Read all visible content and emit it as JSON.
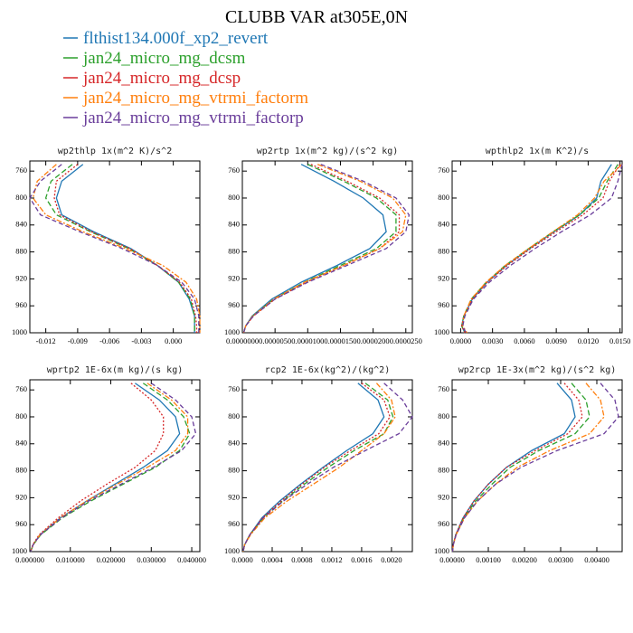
{
  "title": "CLUBB VAR at305E,0N",
  "legend": [
    {
      "name": "flthist134.000f_xp2_revert",
      "color": "#1f77b4",
      "dash": "none"
    },
    {
      "name": "jan24_micro_mg_dcsm",
      "color": "#2ca02c",
      "dash": "6 3"
    },
    {
      "name": "jan24_micro_mg_dcsp",
      "color": "#d62728",
      "dash": "2 2"
    },
    {
      "name": "jan24_micro_mg_vtrmi_factorm",
      "color": "#ff7f0e",
      "dash": "6 2 2 2"
    },
    {
      "name": "jan24_micro_mg_vtrmi_factorp",
      "color": "#6a3d9a",
      "dash": "5 3"
    }
  ],
  "chart_data": [
    {
      "type": "line",
      "title": "wp2thlp   1x(m^2 K)/s^2",
      "levels": [
        750,
        775,
        800,
        825,
        850,
        875,
        900,
        925,
        950,
        975,
        990,
        1000
      ],
      "xlim": [
        -0.0135,
        0.0025
      ],
      "xticks": [
        -0.012,
        -0.009,
        -0.006,
        -0.003,
        {
          "value": 0,
          "label": "0.000"
        }
      ],
      "ylim": [
        1000,
        745
      ],
      "yticks": [
        760,
        800,
        840,
        880,
        920,
        960,
        1000
      ],
      "series": [
        {
          "values": [
            -0.0085,
            -0.0105,
            -0.011,
            -0.0105,
            -0.0075,
            -0.004,
            -0.0015,
            0.0005,
            0.0015,
            0.002,
            0.002,
            0.002
          ]
        },
        {
          "values": [
            -0.0095,
            -0.0115,
            -0.012,
            -0.011,
            -0.0078,
            -0.0042,
            -0.0015,
            0.0005,
            0.0016,
            0.002,
            0.002,
            0.002
          ]
        },
        {
          "values": [
            -0.009,
            -0.011,
            -0.0112,
            -0.0107,
            -0.0077,
            -0.0041,
            -0.0015,
            0.0006,
            0.0017,
            0.0021,
            0.0022,
            0.0022
          ]
        },
        {
          "values": [
            -0.011,
            -0.0128,
            -0.0132,
            -0.012,
            -0.0085,
            -0.0045,
            -0.001,
            0.0012,
            0.0022,
            0.0025,
            0.0025,
            0.0025
          ]
        },
        {
          "values": [
            -0.0105,
            -0.0125,
            -0.0135,
            -0.0125,
            -0.0088,
            -0.0048,
            -0.0015,
            0.0008,
            0.002,
            0.0024,
            0.0024,
            0.0024
          ]
        }
      ]
    },
    {
      "type": "line",
      "title": "wp2rtp   1x(m^2 kg)/(s^2 kg)",
      "levels": [
        750,
        775,
        800,
        825,
        850,
        875,
        900,
        925,
        950,
        975,
        990,
        1000
      ],
      "xlim": [
        0,
        2.6e-05
      ],
      "xticks": [
        {
          "value": 0,
          "label": "0.0000000"
        },
        {
          "value": 5e-06,
          "label": "0.0000050"
        },
        {
          "value": 1e-05,
          "label": "0.0000100"
        },
        {
          "value": 1.5e-05,
          "label": "0.0000150"
        },
        {
          "value": 2e-05,
          "label": "0.0000200"
        },
        {
          "value": 2.5e-05,
          "label": "0.0000250"
        }
      ],
      "ylim": [
        1000,
        745
      ],
      "yticks": [
        760,
        800,
        840,
        880,
        920,
        960,
        1000
      ],
      "series": [
        {
          "values": [
            9e-06,
            1.4e-05,
            1.85e-05,
            2.15e-05,
            2.2e-05,
            1.95e-05,
            1.45e-05,
            9e-06,
            4.5e-06,
            1.5e-06,
            5e-07,
            2e-07
          ]
        },
        {
          "values": [
            1e-05,
            1.55e-05,
            2.05e-05,
            2.35e-05,
            2.35e-05,
            2.05e-05,
            1.5e-05,
            9.5e-06,
            4.8e-06,
            1.6e-06,
            5e-07,
            2e-07
          ]
        },
        {
          "values": [
            1.05e-05,
            1.6e-05,
            2.1e-05,
            2.4e-05,
            2.4e-05,
            2.1e-05,
            1.55e-05,
            9.8e-06,
            5e-06,
            1.7e-06,
            5e-07,
            2e-07
          ]
        },
        {
          "values": [
            1.15e-05,
            1.8e-05,
            2.3e-05,
            2.5e-05,
            2.45e-05,
            2.1e-05,
            1.55e-05,
            9.5e-06,
            4.8e-06,
            1.6e-06,
            5e-07,
            2e-07
          ]
        },
        {
          "values": [
            1.2e-05,
            1.85e-05,
            2.35e-05,
            2.55e-05,
            2.5e-05,
            2.2e-05,
            1.6e-05,
            1e-05,
            5e-06,
            1.7e-06,
            5e-07,
            2e-07
          ]
        }
      ]
    },
    {
      "type": "line",
      "title": "wpthlp2   1x(m K^2)/s",
      "levels": [
        750,
        775,
        800,
        825,
        850,
        875,
        900,
        925,
        950,
        975,
        990,
        1000
      ],
      "xlim": [
        -0.0008,
        0.0152
      ],
      "xticks": [
        {
          "value": 0,
          "label": "0.0000"
        },
        {
          "value": 0.003,
          "label": "0.0030"
        },
        {
          "value": 0.006,
          "label": "0.0060"
        },
        {
          "value": 0.009,
          "label": "0.0090"
        },
        {
          "value": 0.012,
          "label": "0.0120"
        },
        {
          "value": 0.015,
          "label": "0.0150"
        }
      ],
      "ylim": [
        1000,
        745
      ],
      "yticks": [
        760,
        800,
        840,
        880,
        920,
        960,
        1000
      ],
      "series": [
        {
          "values": [
            0.0142,
            0.0132,
            0.0128,
            0.0112,
            0.0088,
            0.0065,
            0.0043,
            0.0025,
            0.0011,
            0.0003,
            0.0001,
            0.0004
          ]
        },
        {
          "values": [
            0.0148,
            0.0138,
            0.013,
            0.0112,
            0.0087,
            0.0064,
            0.0042,
            0.0024,
            0.001,
            0.0003,
            0.0001,
            0.0004
          ]
        },
        {
          "values": [
            0.015,
            0.014,
            0.0134,
            0.0115,
            0.009,
            0.0066,
            0.0044,
            0.0025,
            0.0011,
            0.0003,
            0.0001,
            0.0004
          ]
        },
        {
          "values": [
            0.0152,
            0.0135,
            0.0126,
            0.011,
            0.0087,
            0.0064,
            0.0042,
            0.0024,
            0.001,
            0.0003,
            0.0002,
            0.0006
          ]
        },
        {
          "values": [
            0.0152,
            0.0148,
            0.0142,
            0.0122,
            0.0095,
            0.007,
            0.0047,
            0.0027,
            0.0012,
            0.0004,
            0.0002,
            0.0005
          ]
        }
      ]
    },
    {
      "type": "line",
      "title": "wprtp2   1E-6x(m kg)/(s kg)",
      "levels": [
        750,
        775,
        800,
        825,
        850,
        875,
        900,
        925,
        950,
        975,
        990,
        1000
      ],
      "xlim": [
        0,
        0.042
      ],
      "xticks": [
        {
          "value": 0,
          "label": "0.000000"
        },
        {
          "value": 0.01,
          "label": "0.010000"
        },
        {
          "value": 0.02,
          "label": "0.020000"
        },
        {
          "value": 0.03,
          "label": "0.030000"
        },
        {
          "value": 0.04,
          "label": "0.040000"
        }
      ],
      "ylim": [
        1000,
        745
      ],
      "yticks": [
        760,
        800,
        840,
        880,
        920,
        960,
        1000
      ],
      "series": [
        {
          "values": [
            0.026,
            0.032,
            0.036,
            0.037,
            0.034,
            0.028,
            0.021,
            0.014,
            0.0075,
            0.0025,
            0.0008,
            0.0002
          ]
        },
        {
          "values": [
            0.028,
            0.034,
            0.038,
            0.0395,
            0.037,
            0.031,
            0.023,
            0.015,
            0.008,
            0.0027,
            0.0008,
            0.0002
          ]
        },
        {
          "values": [
            0.025,
            0.03,
            0.033,
            0.033,
            0.031,
            0.026,
            0.019,
            0.0125,
            0.007,
            0.0023,
            0.0007,
            0.0002
          ]
        },
        {
          "values": [
            0.029,
            0.035,
            0.039,
            0.039,
            0.036,
            0.029,
            0.0215,
            0.014,
            0.0075,
            0.0025,
            0.0008,
            0.0002
          ]
        },
        {
          "values": [
            0.03,
            0.036,
            0.04,
            0.041,
            0.0375,
            0.0305,
            0.0225,
            0.0145,
            0.0078,
            0.0026,
            0.0008,
            0.0002
          ]
        }
      ]
    },
    {
      "type": "line",
      "title": "rcp2   1E-6x(kg^2)/(kg^2)",
      "levels": [
        750,
        775,
        800,
        825,
        850,
        875,
        900,
        925,
        950,
        975,
        990,
        1000
      ],
      "xlim": [
        0,
        0.00228
      ],
      "xticks": [
        {
          "value": 0,
          "label": "0.0000"
        },
        0.0004,
        0.0008,
        0.0012,
        0.0016,
        {
          "value": 0.002,
          "label": "0.0020"
        }
      ],
      "ylim": [
        1000,
        745
      ],
      "yticks": [
        760,
        800,
        840,
        880,
        920,
        960,
        1000
      ],
      "series": [
        {
          "values": [
            0.00155,
            0.00182,
            0.0019,
            0.00175,
            0.0014,
            0.00108,
            0.00078,
            0.0005,
            0.00026,
            0.0001,
            3e-05,
            1e-05
          ]
        },
        {
          "values": [
            0.00165,
            0.00195,
            0.00202,
            0.0019,
            0.0015,
            0.00115,
            0.00083,
            0.00054,
            0.00028,
            0.0001,
            3e-05,
            1e-05
          ]
        },
        {
          "values": [
            0.0016,
            0.0019,
            0.00198,
            0.00183,
            0.00145,
            0.0011,
            0.0008,
            0.00052,
            0.00027,
            0.0001,
            3e-05,
            1e-05
          ]
        },
        {
          "values": [
            0.0018,
            0.002,
            0.00205,
            0.0019,
            0.0016,
            0.0013,
            0.00095,
            0.0006,
            0.0003,
            0.00011,
            3e-05,
            1e-05
          ]
        },
        {
          "values": [
            0.0019,
            0.00215,
            0.00228,
            0.0021,
            0.00165,
            0.00122,
            0.00087,
            0.00055,
            0.00028,
            0.0001,
            3e-05,
            1e-05
          ]
        }
      ]
    },
    {
      "type": "line",
      "title": "wp2rcp   1E-3x(m^2 kg)/(s^2 kg)",
      "levels": [
        750,
        775,
        800,
        825,
        850,
        875,
        900,
        925,
        950,
        975,
        990,
        1000
      ],
      "xlim": [
        0,
        0.0047
      ],
      "xticks": [
        {
          "value": 0,
          "label": "0.00000"
        },
        {
          "value": 0.001,
          "label": "0.00100"
        },
        {
          "value": 0.002,
          "label": "0.00200"
        },
        {
          "value": 0.003,
          "label": "0.00300"
        },
        {
          "value": 0.004,
          "label": "0.00400"
        }
      ],
      "ylim": [
        1000,
        745
      ],
      "yticks": [
        760,
        800,
        840,
        880,
        920,
        960,
        1000
      ],
      "series": [
        {
          "values": [
            0.0029,
            0.0033,
            0.0034,
            0.0031,
            0.0022,
            0.0015,
            0.001,
            0.0006,
            0.0003,
            0.0001,
            3e-05,
            1e-05
          ]
        },
        {
          "values": [
            0.0033,
            0.0037,
            0.0038,
            0.0034,
            0.0024,
            0.0016,
            0.0011,
            0.00065,
            0.00032,
            0.0001,
            3e-05,
            1e-05
          ]
        },
        {
          "values": [
            0.0031,
            0.0035,
            0.0036,
            0.0032,
            0.0023,
            0.0015,
            0.001,
            0.0006,
            0.0003,
            0.0001,
            3e-05,
            1e-05
          ]
        },
        {
          "values": [
            0.0037,
            0.0041,
            0.0042,
            0.0038,
            0.0027,
            0.0018,
            0.0012,
            0.0007,
            0.00034,
            0.00011,
            3e-05,
            1e-05
          ]
        },
        {
          "values": [
            0.0041,
            0.0045,
            0.0046,
            0.0042,
            0.0029,
            0.0019,
            0.0012,
            0.0007,
            0.00034,
            0.00011,
            3e-05,
            1e-05
          ]
        }
      ]
    }
  ]
}
